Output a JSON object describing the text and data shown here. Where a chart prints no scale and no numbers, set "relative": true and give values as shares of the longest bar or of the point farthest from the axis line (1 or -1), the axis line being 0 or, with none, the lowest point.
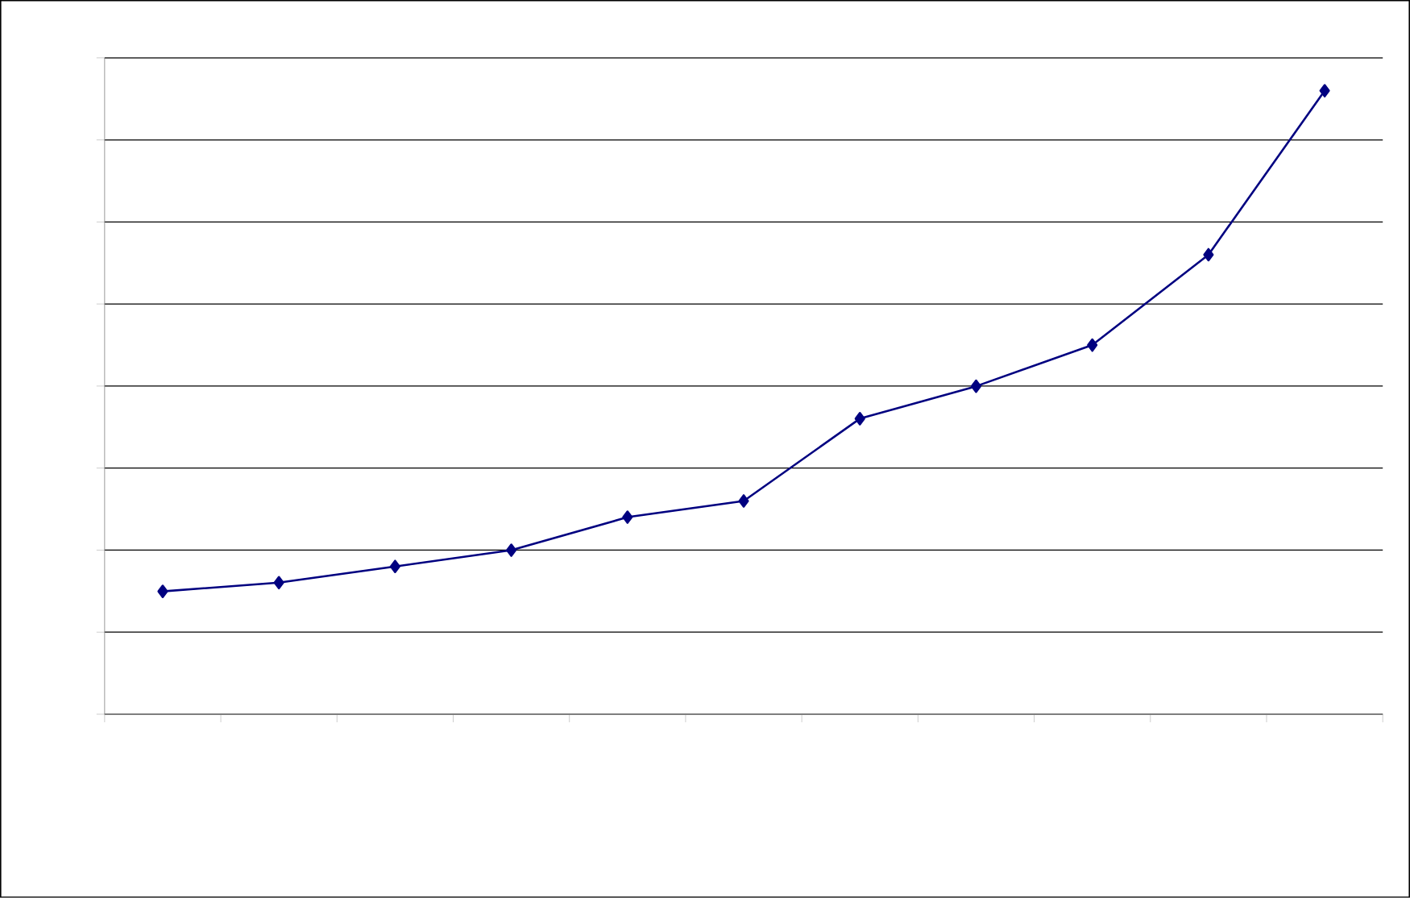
{
  "chart_data": {
    "type": "line",
    "relative": true,
    "categories": [
      null,
      null,
      null,
      null,
      null,
      null,
      null,
      null,
      null,
      null,
      null
    ],
    "series": [
      {
        "color": "#000080",
        "values": [
          0.197,
          0.211,
          0.237,
          0.263,
          0.316,
          0.342,
          0.474,
          0.526,
          0.592,
          0.737,
          1
        ]
      }
    ],
    "grid": "y",
    "marker": "diamond",
    "line_style": "solid",
    "tick_labels": false
  }
}
